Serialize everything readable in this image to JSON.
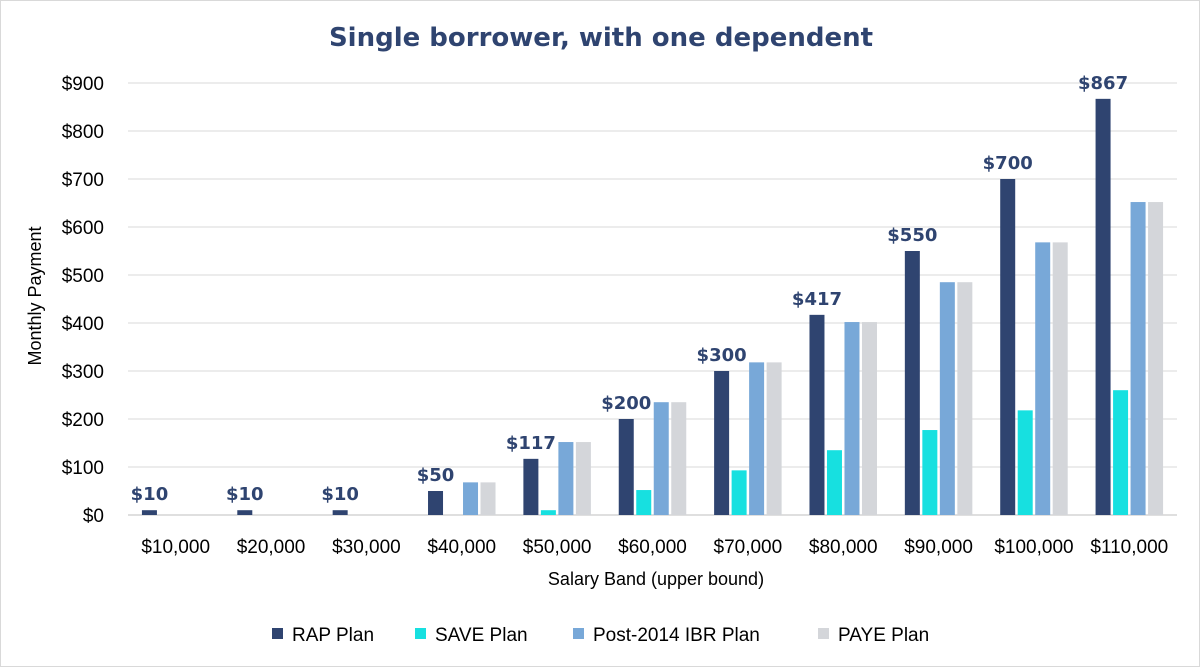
{
  "chart_data": {
    "type": "bar",
    "title": "Single borrower, with one dependent",
    "xlabel": "Salary Band (upper bound)",
    "ylabel": "Monthly Payment",
    "ylim": [
      0,
      900
    ],
    "ytick_step": 100,
    "y_tick_labels": [
      "$0",
      "$100",
      "$200",
      "$300",
      "$400",
      "$500",
      "$600",
      "$700",
      "$800",
      "$900"
    ],
    "categories": [
      "$10,000",
      "$20,000",
      "$30,000",
      "$40,000",
      "$50,000",
      "$60,000",
      "$70,000",
      "$80,000",
      "$90,000",
      "$100,000",
      "$110,000"
    ],
    "series": [
      {
        "name": "RAP Plan",
        "color": "#2f4470",
        "values": [
          10,
          10,
          10,
          50,
          117,
          200,
          300,
          417,
          550,
          700,
          867
        ]
      },
      {
        "name": "SAVE Plan",
        "color": "#17e0e0",
        "values": [
          0,
          0,
          0,
          0,
          10,
          52,
          93,
          135,
          177,
          218,
          260
        ]
      },
      {
        "name": "Post-2014 IBR Plan",
        "color": "#78a8d8",
        "values": [
          0,
          0,
          0,
          68,
          152,
          235,
          318,
          402,
          485,
          568,
          652
        ]
      },
      {
        "name": "PAYE Plan",
        "color": "#d4d6da",
        "values": [
          0,
          0,
          0,
          68,
          152,
          235,
          318,
          402,
          485,
          568,
          652
        ]
      }
    ],
    "data_labels": [
      "$10",
      "$10",
      "$10",
      "$50",
      "$117",
      "$200",
      "$300",
      "$417",
      "$550",
      "$700",
      "$867"
    ],
    "grid": true,
    "legend": "bottom"
  }
}
